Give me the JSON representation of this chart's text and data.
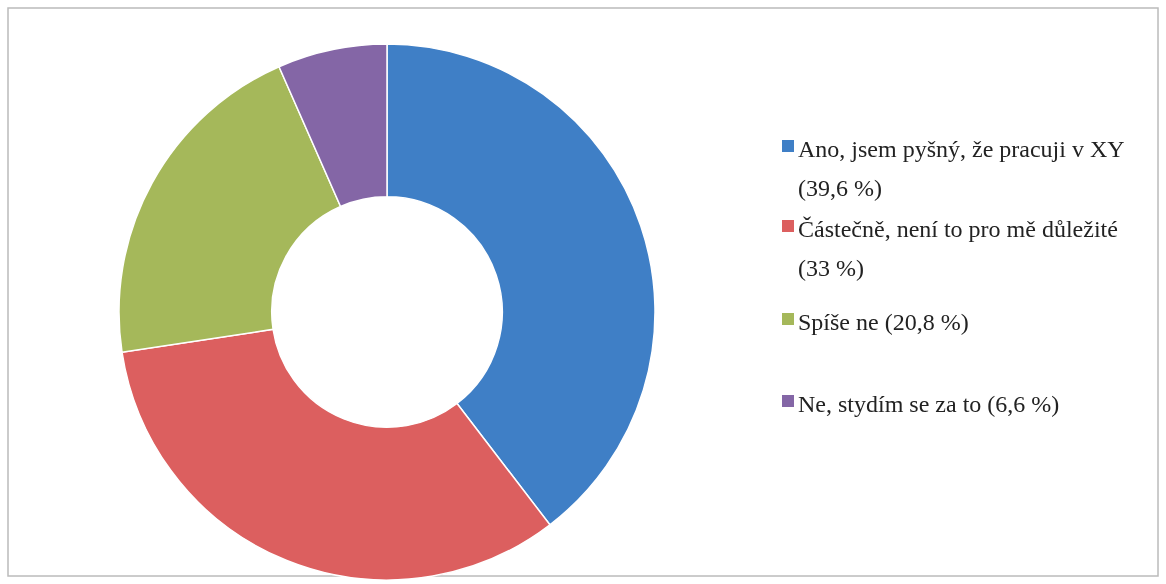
{
  "chart_data": {
    "type": "donut",
    "categories": [
      "Ano, jsem pyšný, že pracuji v XY (39,6 %)",
      "Částečně, není to pro mě důležité (33 %)",
      "Spíše ne (20,8 %)",
      "Ne, stydím se za to (6,6 %)"
    ],
    "values": [
      39.6,
      33,
      20.8,
      6.6
    ],
    "colors": [
      "#3f7fc6",
      "#dc5f5f",
      "#a5b85a",
      "#8466a6"
    ],
    "legend": "right"
  }
}
